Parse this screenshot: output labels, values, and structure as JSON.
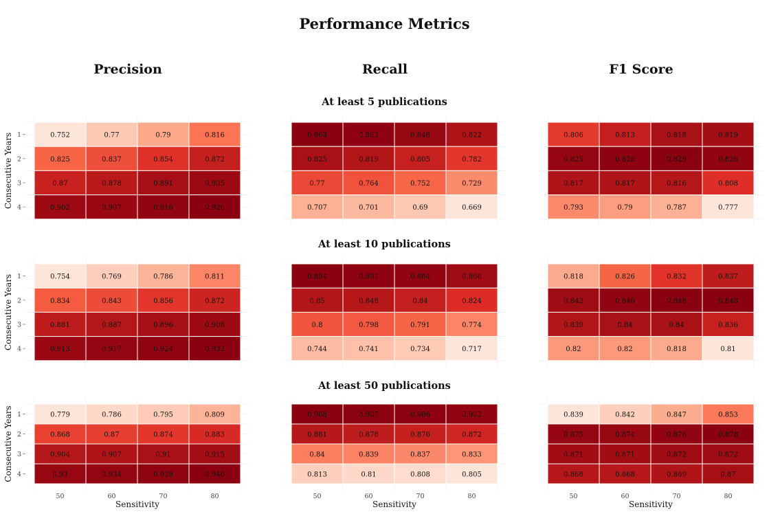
{
  "chart_data": {
    "type": "heatmap",
    "title": "Performance Metrics",
    "columns": [
      "Precision",
      "Recall",
      "F1 Score"
    ],
    "rows": [
      "At least 5 publications",
      "At least 10 publications",
      "At least 50 publications"
    ],
    "xlabel": "Sensitivity",
    "ylabel": "Consecutive Years",
    "x_ticks": [
      "50",
      "60",
      "70",
      "80"
    ],
    "y_ticks": [
      "1",
      "2",
      "3",
      "4"
    ],
    "colormap": [
      "#fee5d9",
      "#fcae91",
      "#fb6a4a",
      "#de2d26",
      "#a50f15",
      "#8b0010"
    ],
    "panels": [
      {
        "metric": "Precision",
        "group": "At least 5 publications",
        "values": [
          [
            "0.752",
            "0.77",
            "0.79",
            "0.816"
          ],
          [
            "0.825",
            "0.837",
            "0.854",
            "0.872"
          ],
          [
            "0.87",
            "0.878",
            "0.891",
            "0.905"
          ],
          [
            "0.902",
            "0.907",
            "0.916",
            "0.926"
          ]
        ]
      },
      {
        "metric": "Recall",
        "group": "At least 5 publications",
        "values": [
          [
            "0.868",
            "0.862",
            "0.848",
            "0.822"
          ],
          [
            "0.825",
            "0.819",
            "0.805",
            "0.782"
          ],
          [
            "0.77",
            "0.764",
            "0.752",
            "0.729"
          ],
          [
            "0.707",
            "0.701",
            "0.69",
            "0.669"
          ]
        ]
      },
      {
        "metric": "F1 Score",
        "group": "At least 5 publications",
        "values": [
          [
            "0.806",
            "0.813",
            "0.818",
            "0.819"
          ],
          [
            "0.825",
            "0.828",
            "0.829",
            "0.826"
          ],
          [
            "0.817",
            "0.817",
            "0.816",
            "0.808"
          ],
          [
            "0.793",
            "0.79",
            "0.787",
            "0.777"
          ]
        ]
      },
      {
        "metric": "Precision",
        "group": "At least 10 publications",
        "values": [
          [
            "0.754",
            "0.769",
            "0.786",
            "0.811"
          ],
          [
            "0.834",
            "0.843",
            "0.856",
            "0.872"
          ],
          [
            "0.881",
            "0.887",
            "0.896",
            "0.908"
          ],
          [
            "0.913",
            "0.917",
            "0.924",
            "0.932"
          ]
        ]
      },
      {
        "metric": "Recall",
        "group": "At least 10 publications",
        "values": [
          [
            "0.894",
            "0.891",
            "0.884",
            "0.866"
          ],
          [
            "0.85",
            "0.848",
            "0.84",
            "0.824"
          ],
          [
            "0.8",
            "0.798",
            "0.791",
            "0.774"
          ],
          [
            "0.744",
            "0.741",
            "0.734",
            "0.717"
          ]
        ]
      },
      {
        "metric": "F1 Score",
        "group": "At least 10 publications",
        "values": [
          [
            "0.818",
            "0.826",
            "0.832",
            "0.837"
          ],
          [
            "0.842",
            "0.846",
            "0.848",
            "0.848"
          ],
          [
            "0.839",
            "0.84",
            "0.84",
            "0.836"
          ],
          [
            "0.82",
            "0.82",
            "0.818",
            "0.81"
          ]
        ]
      },
      {
        "metric": "Precision",
        "group": "At least 50 publications",
        "values": [
          [
            "0.779",
            "0.786",
            "0.795",
            "0.809"
          ],
          [
            "0.868",
            "0.87",
            "0.874",
            "0.883"
          ],
          [
            "0.904",
            "0.907",
            "0.91",
            "0.915"
          ],
          [
            "0.93",
            "0.934",
            "0.939",
            "0.946"
          ]
        ]
      },
      {
        "metric": "Recall",
        "group": "At least 50 publications",
        "values": [
          [
            "0.908",
            "0.907",
            "0.906",
            "0.902"
          ],
          [
            "0.881",
            "0.878",
            "0.876",
            "0.872"
          ],
          [
            "0.84",
            "0.839",
            "0.837",
            "0.833"
          ],
          [
            "0.813",
            "0.81",
            "0.808",
            "0.805"
          ]
        ]
      },
      {
        "metric": "F1 Score",
        "group": "At least 50 publications",
        "values": [
          [
            "0.839",
            "0.842",
            "0.847",
            "0.853"
          ],
          [
            "0.875",
            "0.874",
            "0.876",
            "0.878"
          ],
          [
            "0.871",
            "0.871",
            "0.872",
            "0.872"
          ],
          [
            "0.868",
            "0.868",
            "0.869",
            "0.87"
          ]
        ]
      }
    ]
  }
}
